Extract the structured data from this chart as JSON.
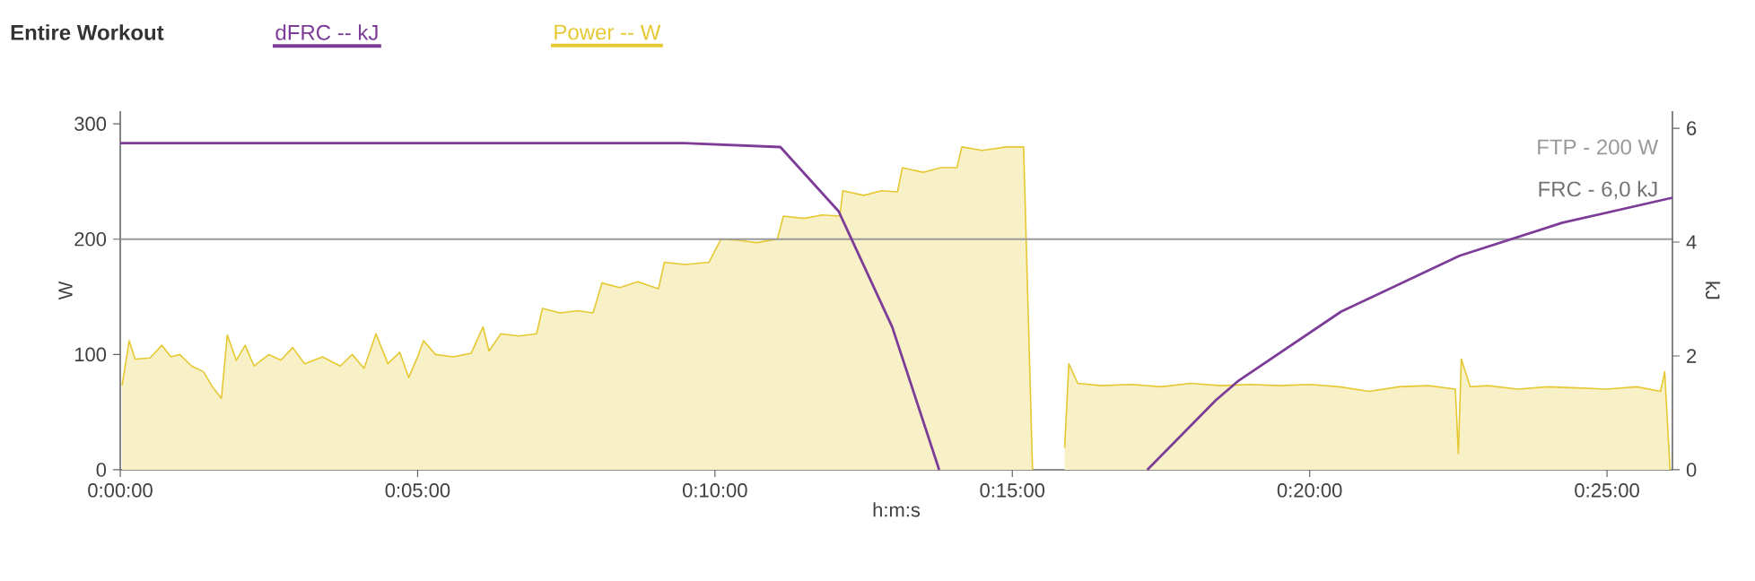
{
  "chart_data": {
    "type": "area",
    "legend_title": "Entire Workout",
    "xlabel": "h:m:s",
    "ylabel": "W",
    "y2label": "kJ",
    "xlim": [
      0,
      26.1
    ],
    "ylim": [
      0,
      311
    ],
    "y2lim": [
      0,
      6.3
    ],
    "xticks": [
      {
        "value": 0,
        "label": "0:00:00"
      },
      {
        "value": 5,
        "label": "0:05:00"
      },
      {
        "value": 10,
        "label": "0:10:00"
      },
      {
        "value": 15,
        "label": "0:15:00"
      },
      {
        "value": 20,
        "label": "0:20:00"
      },
      {
        "value": 25,
        "label": "0:25:00"
      }
    ],
    "yticks": [
      0,
      100,
      200,
      300
    ],
    "y2ticks": [
      0,
      2,
      4,
      6
    ],
    "legend": "top left",
    "ref_lines": [
      {
        "axis": "y",
        "value": 200,
        "label": "FTP - 200 W",
        "color": "#999999"
      }
    ],
    "annotations": [
      "FRC - 6,0 kJ"
    ],
    "series": [
      {
        "name": "dFRC  -- kJ",
        "type": "line",
        "axis": "y2",
        "color": "#7d3c98",
        "x": [
          0,
          9.45,
          11.1,
          12.08,
          12.98,
          13.77,
          15.5,
          17.27,
          18.42,
          18.81,
          20.53,
          22.52,
          24.25,
          26.1
        ],
        "values": [
          5.74,
          5.74,
          5.67,
          4.54,
          2.51,
          0,
          null,
          0,
          1.22,
          1.57,
          2.78,
          3.76,
          4.34,
          4.78
        ]
      },
      {
        "name": "Power  -- W",
        "axis": "y",
        "color": "#e6c832",
        "x": [
          0.03,
          0.15,
          0.25,
          0.5,
          0.7,
          0.85,
          1.0,
          1.2,
          1.4,
          1.55,
          1.7,
          1.8,
          1.95,
          2.1,
          2.25,
          2.5,
          2.7,
          2.9,
          3.1,
          3.4,
          3.7,
          3.9,
          4.1,
          4.3,
          4.5,
          4.7,
          4.85,
          5.0,
          5.1,
          5.3,
          5.6,
          5.9,
          6.1,
          6.2,
          6.4,
          6.7,
          7.0,
          7.1,
          7.4,
          7.7,
          7.95,
          8.1,
          8.4,
          8.7,
          9.05,
          9.15,
          9.5,
          9.9,
          10.1,
          10.4,
          10.7,
          11.05,
          11.15,
          11.5,
          11.8,
          12.1,
          12.15,
          12.5,
          12.8,
          13.07,
          13.15,
          13.5,
          13.8,
          14.07,
          14.15,
          14.5,
          14.9,
          15.19,
          15.34,
          15.6,
          15.88,
          15.95,
          16.1,
          16.5,
          17,
          17.5,
          18,
          18.5,
          19,
          19.5,
          20,
          20.5,
          21,
          21.5,
          22,
          22.45,
          22.5,
          22.55,
          22.7,
          23,
          23.5,
          24,
          24.5,
          25,
          25.5,
          25.9,
          25.97,
          26.06
        ],
        "values": [
          73,
          112,
          96,
          97,
          108,
          98,
          100,
          90,
          85,
          72,
          62,
          117,
          95,
          108,
          90,
          100,
          95,
          106,
          92,
          98,
          90,
          100,
          88,
          118,
          92,
          102,
          80,
          98,
          112,
          100,
          98,
          101,
          124,
          103,
          118,
          116,
          118,
          140,
          136,
          138,
          136,
          162,
          158,
          163,
          157,
          180,
          178,
          180,
          200,
          199,
          197,
          200,
          220,
          218,
          221,
          220,
          242,
          238,
          242,
          241,
          262,
          258,
          262,
          262,
          280,
          277,
          280,
          280,
          0,
          null,
          19,
          92,
          75,
          73,
          74,
          72,
          75,
          73,
          74,
          73,
          74,
          72,
          68,
          72,
          73,
          70,
          14,
          96,
          72,
          73,
          70,
          72,
          71,
          70,
          72,
          68,
          85,
          0
        ]
      }
    ]
  }
}
